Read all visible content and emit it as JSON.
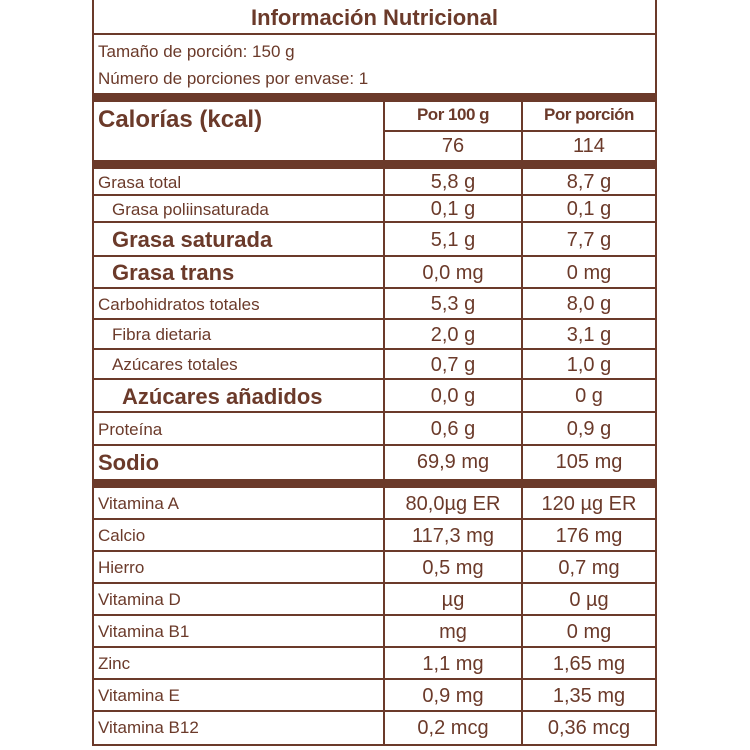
{
  "title": "Información Nutricional",
  "serving_size": "Tamaño de porción: 150 g",
  "servings_per_container": "Número de porciones por envase: 1",
  "calories": {
    "label": "Calorías (kcal)",
    "col1_header": "Por 100 g",
    "col2_header": "Por porción",
    "per100": "76",
    "perServing": "114"
  },
  "colors": {
    "brand": "#6b3a2a"
  },
  "nutrients": [
    {
      "name": "Grasa total",
      "per100": "5,8 g",
      "perServing": "8,7 g",
      "style": "n"
    },
    {
      "name": "Grasa poliinsaturada",
      "per100": "0,1 g",
      "perServing": "0,1 g",
      "style": "n ind1"
    },
    {
      "name": "Grasa saturada",
      "per100": "5,1 g",
      "perServing": "7,7 g",
      "style": "n big ind1"
    },
    {
      "name": "Grasa trans",
      "per100": "0,0 mg",
      "perServing": "0 mg",
      "style": "n big ind1"
    },
    {
      "name": "Carbohidratos totales",
      "per100": "5,3 g",
      "perServing": "8,0 g",
      "style": "n"
    },
    {
      "name": "Fibra dietaria",
      "per100": "2,0 g",
      "perServing": "3,1 g",
      "style": "n ind1"
    },
    {
      "name": "Azúcares totales",
      "per100": "0,7 g",
      "perServing": "1,0 g",
      "style": "n ind1"
    },
    {
      "name": "Azúcares añadidos",
      "per100": "0,0 g",
      "perServing": "0 g",
      "style": "n big ind3"
    },
    {
      "name": "Proteína",
      "per100": "0,6 g",
      "perServing": "0,9 g",
      "style": "n"
    },
    {
      "name": "Sodio",
      "per100": "69,9 mg",
      "perServing": "105 mg",
      "style": "n big"
    }
  ],
  "vitamins": [
    {
      "name": "Vitamina A",
      "per100": "80,0µg ER",
      "perServing": "120 µg ER"
    },
    {
      "name": "Calcio",
      "per100": "117,3 mg",
      "perServing": "176 mg"
    },
    {
      "name": "Hierro",
      "per100": "0,5 mg",
      "perServing": "0,7 mg"
    },
    {
      "name": "Vitamina D",
      "per100": "µg",
      "perServing": "0 µg"
    },
    {
      "name": "Vitamina B1",
      "per100": "mg",
      "perServing": "0 mg"
    },
    {
      "name": "Zinc",
      "per100": "1,1 mg",
      "perServing": "1,65 mg"
    },
    {
      "name": "Vitamina E",
      "per100": "0,9 mg",
      "perServing": "1,35 mg"
    },
    {
      "name": "Vitamina B12",
      "per100": "0,2 mcg",
      "perServing": "0,36 mcg"
    }
  ]
}
